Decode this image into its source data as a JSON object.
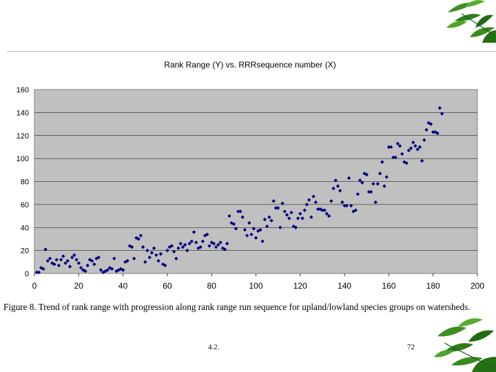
{
  "slide": {
    "caption": "Figure 8.  Trend of rank range with progression along rank range run sequence for upland/lowland species groups on watersheds.",
    "footer_section": "4.2.",
    "page_number": "72",
    "decoration_icon": "leaf-sprig"
  },
  "colors": {
    "plot_background": "#c0c0c0",
    "marker": "#000080",
    "leaf_dark": "#1f6b12",
    "leaf_light": "#4fa52a"
  },
  "chart_data": {
    "type": "scatter",
    "title": "Rank Range (Y) vs. RRRsequence number (X)",
    "xlabel": "",
    "ylabel": "",
    "xlim": [
      0,
      200
    ],
    "ylim": [
      0,
      160
    ],
    "xticks": [
      "0",
      "20",
      "40",
      "60",
      "80",
      "100",
      "120",
      "140",
      "160",
      "180",
      "200"
    ],
    "yticks": [
      "0",
      "20",
      "40",
      "60",
      "80",
      "100",
      "120",
      "140",
      "160"
    ],
    "grid": "horizontal",
    "marker": "diamond",
    "legend": "none",
    "points": [
      [
        1,
        1
      ],
      [
        2,
        1
      ],
      [
        3,
        5
      ],
      [
        4,
        4
      ],
      [
        5,
        21
      ],
      [
        6,
        11
      ],
      [
        7,
        13
      ],
      [
        8,
        9
      ],
      [
        9,
        8
      ],
      [
        10,
        12
      ],
      [
        11,
        7
      ],
      [
        12,
        12
      ],
      [
        13,
        15
      ],
      [
        14,
        9
      ],
      [
        15,
        11
      ],
      [
        16,
        6
      ],
      [
        17,
        14
      ],
      [
        18,
        16
      ],
      [
        19,
        12
      ],
      [
        20,
        9
      ],
      [
        21,
        5
      ],
      [
        22,
        3
      ],
      [
        23,
        2
      ],
      [
        24,
        7
      ],
      [
        25,
        12
      ],
      [
        26,
        11
      ],
      [
        27,
        8
      ],
      [
        28,
        13
      ],
      [
        29,
        14
      ],
      [
        30,
        3
      ],
      [
        31,
        1
      ],
      [
        32,
        2
      ],
      [
        33,
        3
      ],
      [
        34,
        5
      ],
      [
        35,
        4
      ],
      [
        36,
        13
      ],
      [
        37,
        2
      ],
      [
        38,
        3
      ],
      [
        39,
        4
      ],
      [
        40,
        3
      ],
      [
        41,
        10
      ],
      [
        42,
        11
      ],
      [
        43,
        24
      ],
      [
        44,
        23
      ],
      [
        45,
        13
      ],
      [
        46,
        31
      ],
      [
        47,
        30
      ],
      [
        48,
        33
      ],
      [
        49,
        23
      ],
      [
        50,
        10
      ],
      [
        51,
        20
      ],
      [
        52,
        14
      ],
      [
        53,
        18
      ],
      [
        54,
        22
      ],
      [
        55,
        16
      ],
      [
        56,
        11
      ],
      [
        57,
        17
      ],
      [
        58,
        8
      ],
      [
        59,
        7
      ],
      [
        60,
        20
      ],
      [
        61,
        23
      ],
      [
        62,
        24
      ],
      [
        63,
        19
      ],
      [
        64,
        13
      ],
      [
        65,
        22
      ],
      [
        66,
        26
      ],
      [
        67,
        23
      ],
      [
        68,
        25
      ],
      [
        69,
        20
      ],
      [
        70,
        26
      ],
      [
        71,
        28
      ],
      [
        72,
        36
      ],
      [
        73,
        27
      ],
      [
        74,
        22
      ],
      [
        75,
        23
      ],
      [
        76,
        28
      ],
      [
        77,
        33
      ],
      [
        78,
        34
      ],
      [
        79,
        24
      ],
      [
        80,
        27
      ],
      [
        81,
        26
      ],
      [
        82,
        23
      ],
      [
        83,
        25
      ],
      [
        84,
        27
      ],
      [
        85,
        22
      ],
      [
        86,
        21
      ],
      [
        87,
        26
      ],
      [
        88,
        50
      ],
      [
        89,
        44
      ],
      [
        90,
        43
      ],
      [
        91,
        39
      ],
      [
        92,
        54
      ],
      [
        93,
        54
      ],
      [
        94,
        49
      ],
      [
        95,
        38
      ],
      [
        96,
        33
      ],
      [
        97,
        44
      ],
      [
        98,
        34
      ],
      [
        99,
        39
      ],
      [
        100,
        31
      ],
      [
        101,
        37
      ],
      [
        102,
        38
      ],
      [
        103,
        28
      ],
      [
        104,
        47
      ],
      [
        105,
        41
      ],
      [
        106,
        49
      ],
      [
        107,
        46
      ],
      [
        108,
        63
      ],
      [
        109,
        57
      ],
      [
        110,
        57
      ],
      [
        111,
        40
      ],
      [
        112,
        61
      ],
      [
        113,
        54
      ],
      [
        114,
        51
      ],
      [
        115,
        48
      ],
      [
        116,
        53
      ],
      [
        117,
        41
      ],
      [
        118,
        40
      ],
      [
        119,
        48
      ],
      [
        120,
        52
      ],
      [
        121,
        48
      ],
      [
        122,
        55
      ],
      [
        123,
        60
      ],
      [
        124,
        64
      ],
      [
        125,
        49
      ],
      [
        126,
        67
      ],
      [
        127,
        62
      ],
      [
        128,
        56
      ],
      [
        129,
        56
      ],
      [
        130,
        55
      ],
      [
        131,
        55
      ],
      [
        132,
        52
      ],
      [
        133,
        50
      ],
      [
        134,
        63
      ],
      [
        135,
        74
      ],
      [
        136,
        81
      ],
      [
        137,
        76
      ],
      [
        138,
        72
      ],
      [
        139,
        62
      ],
      [
        140,
        59
      ],
      [
        141,
        59
      ],
      [
        142,
        83
      ],
      [
        143,
        59
      ],
      [
        144,
        54
      ],
      [
        145,
        55
      ],
      [
        146,
        69
      ],
      [
        147,
        81
      ],
      [
        148,
        79
      ],
      [
        149,
        87
      ],
      [
        150,
        86
      ],
      [
        151,
        71
      ],
      [
        152,
        71
      ],
      [
        153,
        78
      ],
      [
        154,
        62
      ],
      [
        155,
        78
      ],
      [
        156,
        87
      ],
      [
        157,
        97
      ],
      [
        158,
        76
      ],
      [
        159,
        84
      ],
      [
        160,
        110
      ],
      [
        161,
        110
      ],
      [
        162,
        101
      ],
      [
        163,
        101
      ],
      [
        164,
        113
      ],
      [
        165,
        111
      ],
      [
        166,
        104
      ],
      [
        167,
        97
      ],
      [
        168,
        96
      ],
      [
        169,
        107
      ],
      [
        170,
        109
      ],
      [
        171,
        114
      ],
      [
        172,
        111
      ],
      [
        173,
        108
      ],
      [
        174,
        110
      ],
      [
        175,
        98
      ],
      [
        176,
        116
      ],
      [
        177,
        125
      ],
      [
        178,
        131
      ],
      [
        179,
        130
      ],
      [
        180,
        123
      ],
      [
        181,
        123
      ],
      [
        182,
        122
      ],
      [
        183,
        144
      ],
      [
        184,
        139
      ]
    ]
  }
}
